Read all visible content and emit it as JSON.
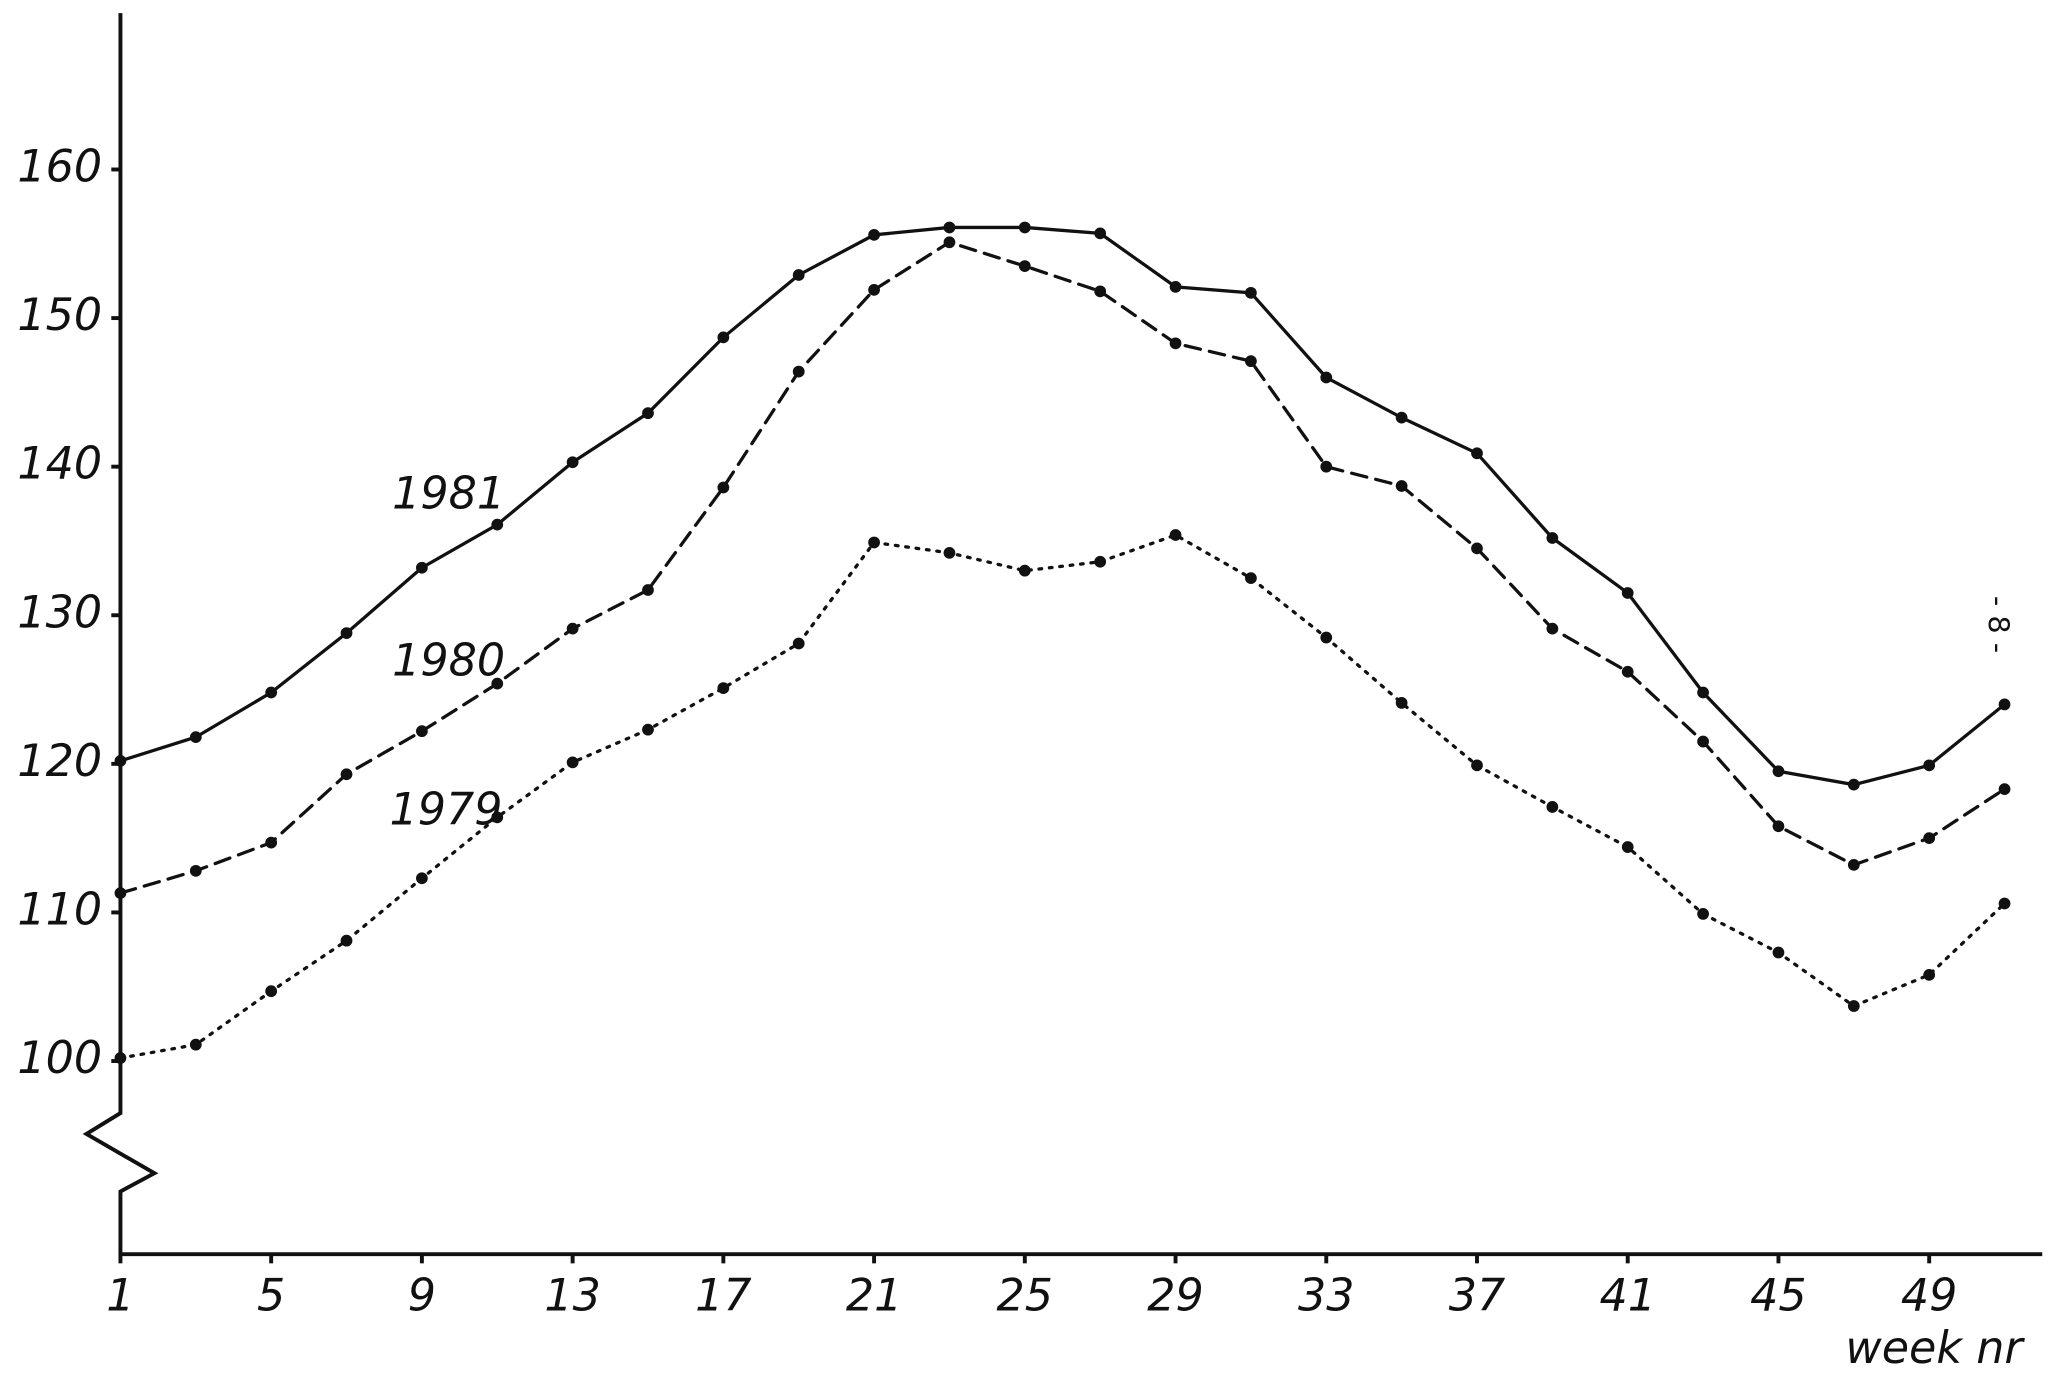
{
  "chart_data": {
    "type": "line",
    "x_label": "week nr",
    "page_label": "- 8 -",
    "x": [
      1,
      3,
      5,
      7,
      9,
      11,
      13,
      15,
      17,
      19,
      21,
      23,
      25,
      27,
      29,
      31,
      33,
      35,
      37,
      39,
      41,
      43,
      45,
      47,
      49,
      51
    ],
    "series": [
      {
        "name": "1981",
        "color": "#111111",
        "line_style": "solid",
        "values": [
          120.2,
          121.8,
          124.8,
          128.8,
          133.2,
          136.1,
          140.3,
          143.6,
          148.7,
          152.9,
          155.6,
          156.1,
          156.1,
          155.7,
          152.1,
          151.7,
          146.0,
          143.3,
          140.9,
          135.2,
          131.5,
          124.8,
          119.5,
          118.6,
          119.9,
          124.0
        ]
      },
      {
        "name": "1980",
        "color": "#111111",
        "line_style": "dashed",
        "values": [
          111.3,
          112.8,
          114.7,
          119.3,
          122.2,
          125.4,
          129.1,
          131.7,
          138.6,
          146.4,
          151.9,
          155.1,
          153.5,
          151.8,
          148.3,
          147.1,
          140.0,
          138.7,
          134.5,
          129.1,
          126.2,
          121.5,
          115.8,
          113.2,
          115.0,
          118.3
        ]
      },
      {
        "name": "1979",
        "color": "#111111",
        "line_style": "dotted",
        "values": [
          100.2,
          101.1,
          104.7,
          108.1,
          112.3,
          116.4,
          120.1,
          122.3,
          125.1,
          128.1,
          134.9,
          134.2,
          133.0,
          133.6,
          135.4,
          132.5,
          128.5,
          124.1,
          119.9,
          117.1,
          114.4,
          109.9,
          107.3,
          103.7,
          105.8,
          110.6
        ]
      }
    ],
    "xlim": [
      1,
      52
    ],
    "xticks": [
      1,
      5,
      9,
      13,
      17,
      21,
      25,
      29,
      33,
      37,
      41,
      45,
      49
    ],
    "ylim": [
      87,
      170
    ],
    "yticks": [
      100,
      110,
      120,
      130,
      140,
      150,
      160
    ],
    "grid": false
  }
}
